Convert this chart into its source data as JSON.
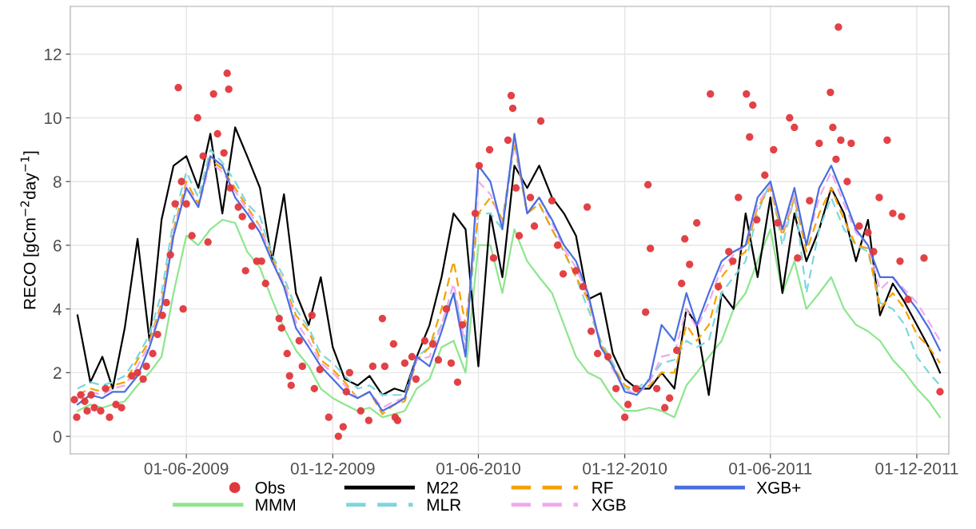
{
  "chart_data": {
    "type": "line",
    "ylabel": "RECO [gCm$^{−2}$day$^{−1}$]",
    "x": [
      "2009-01-16",
      "2009-02-01",
      "2009-02-16",
      "2009-03-01",
      "2009-03-16",
      "2009-04-01",
      "2009-04-16",
      "2009-05-01",
      "2009-05-16",
      "2009-06-01",
      "2009-06-16",
      "2009-07-01",
      "2009-07-16",
      "2009-08-01",
      "2009-08-16",
      "2009-09-01",
      "2009-09-16",
      "2009-10-01",
      "2009-10-16",
      "2009-11-01",
      "2009-11-16",
      "2009-12-01",
      "2009-12-16",
      "2010-01-01",
      "2010-01-16",
      "2010-02-01",
      "2010-02-16",
      "2010-03-01",
      "2010-03-16",
      "2010-04-01",
      "2010-04-16",
      "2010-05-01",
      "2010-05-16",
      "2010-06-01",
      "2010-06-16",
      "2010-07-01",
      "2010-07-16",
      "2010-08-01",
      "2010-08-16",
      "2010-09-01",
      "2010-09-16",
      "2010-10-01",
      "2010-10-16",
      "2010-11-01",
      "2010-11-16",
      "2010-12-01",
      "2010-12-16",
      "2011-01-01",
      "2011-01-16",
      "2011-02-01",
      "2011-02-16",
      "2011-03-01",
      "2011-03-16",
      "2011-04-01",
      "2011-04-16",
      "2011-05-01",
      "2011-05-16",
      "2011-06-01",
      "2011-06-16",
      "2011-07-01",
      "2011-07-16",
      "2011-08-01",
      "2011-08-16",
      "2011-09-01",
      "2011-09-16",
      "2011-10-01",
      "2011-10-16",
      "2011-11-01",
      "2011-11-16",
      "2011-12-01",
      "2011-12-16",
      "2011-12-30"
    ],
    "series": [
      {
        "name": "Obs",
        "type": "scatter",
        "marker": "circle",
        "color": "#e0383c",
        "x": [
          "2009-01-12",
          "2009-01-15",
          "2009-01-20",
          "2009-01-25",
          "2009-01-28",
          "2009-02-02",
          "2009-02-06",
          "2009-02-14",
          "2009-02-20",
          "2009-02-25",
          "2009-03-05",
          "2009-03-12",
          "2009-03-25",
          "2009-04-01",
          "2009-04-08",
          "2009-04-12",
          "2009-04-20",
          "2009-04-26",
          "2009-05-02",
          "2009-05-07",
          "2009-05-12",
          "2009-05-18",
          "2009-05-22",
          "2009-05-26",
          "2009-05-28",
          "2009-06-01",
          "2009-06-08",
          "2009-06-15",
          "2009-06-22",
          "2009-06-28",
          "2009-07-05",
          "2009-07-10",
          "2009-07-18",
          "2009-07-22",
          "2009-07-24",
          "2009-07-26",
          "2009-08-05",
          "2009-08-10",
          "2009-08-14",
          "2009-08-22",
          "2009-08-28",
          "2009-09-03",
          "2009-09-08",
          "2009-09-25",
          "2009-09-28",
          "2009-10-05",
          "2009-10-08",
          "2009-10-10",
          "2009-10-20",
          "2009-10-24",
          "2009-11-05",
          "2009-11-08",
          "2009-11-15",
          "2009-11-26",
          "2009-12-08",
          "2009-12-14",
          "2009-12-18",
          "2009-12-22",
          "2010-01-05",
          "2010-01-15",
          "2010-01-20",
          "2010-02-01",
          "2010-02-04",
          "2010-02-15",
          "2010-02-17",
          "2010-02-20",
          "2010-03-01",
          "2010-03-10",
          "2010-03-15",
          "2010-03-26",
          "2010-04-05",
          "2010-04-12",
          "2010-04-22",
          "2010-04-28",
          "2010-05-06",
          "2010-05-12",
          "2010-05-28",
          "2010-06-02",
          "2010-06-15",
          "2010-06-20",
          "2010-07-08",
          "2010-07-12",
          "2010-07-14",
          "2010-07-18",
          "2010-07-22",
          "2010-08-05",
          "2010-08-10",
          "2010-08-18",
          "2010-09-01",
          "2010-09-08",
          "2010-09-15",
          "2010-10-01",
          "2010-10-10",
          "2010-10-15",
          "2010-10-20",
          "2010-10-28",
          "2010-11-10",
          "2010-11-20",
          "2010-12-01",
          "2010-12-05",
          "2010-12-15",
          "2010-12-27",
          "2010-12-30",
          "2011-01-02",
          "2011-01-10",
          "2011-01-20",
          "2011-01-26",
          "2011-02-04",
          "2011-02-10",
          "2011-02-14",
          "2011-02-20",
          "2011-03-01",
          "2011-03-18",
          "2011-03-28",
          "2011-04-10",
          "2011-04-15",
          "2011-04-22",
          "2011-05-02",
          "2011-05-06",
          "2011-05-10",
          "2011-05-15",
          "2011-05-25",
          "2011-06-05",
          "2011-06-10",
          "2011-06-25",
          "2011-07-01",
          "2011-07-05",
          "2011-07-20",
          "2011-08-01",
          "2011-08-15",
          "2011-08-18",
          "2011-08-22",
          "2011-08-25",
          "2011-08-28",
          "2011-09-05",
          "2011-09-10",
          "2011-09-20",
          "2011-10-01",
          "2011-10-08",
          "2011-10-15",
          "2011-10-25",
          "2011-11-01",
          "2011-11-10",
          "2011-11-12",
          "2011-11-20",
          "2011-12-10",
          "2011-12-30"
        ],
        "values": [
          1.15,
          0.6,
          1.3,
          1.1,
          0.8,
          1.3,
          0.9,
          0.8,
          1.5,
          0.6,
          1.0,
          0.9,
          1.9,
          2.0,
          1.8,
          2.2,
          2.6,
          3.2,
          3.8,
          4.2,
          5.7,
          7.3,
          10.95,
          8.0,
          4.0,
          7.3,
          6.3,
          10.0,
          8.8,
          6.1,
          10.75,
          9.5,
          8.9,
          11.4,
          10.9,
          7.8,
          7.2,
          6.9,
          5.2,
          6.6,
          5.5,
          5.5,
          4.8,
          3.7,
          3.4,
          2.6,
          1.9,
          1.6,
          3.0,
          2.2,
          3.8,
          1.5,
          2.1,
          0.6,
          0.0,
          0.3,
          1.4,
          2.0,
          0.8,
          0.5,
          2.2,
          3.7,
          2.2,
          2.9,
          0.6,
          0.5,
          2.3,
          2.5,
          1.8,
          3.0,
          2.9,
          2.4,
          4.0,
          2.3,
          1.7,
          3.5,
          7.0,
          8.5,
          9.0,
          5.6,
          9.3,
          10.7,
          10.3,
          7.8,
          6.3,
          7.5,
          6.6,
          9.9,
          7.4,
          6.0,
          5.1,
          5.2,
          4.7,
          7.2,
          3.3,
          2.6,
          2.5,
          1.5,
          0.6,
          1.0,
          1.5,
          3.9,
          7.9,
          5.9,
          1.5,
          0.9,
          1.2,
          2.7,
          4.8,
          6.2,
          5.4,
          6.7,
          10.75,
          4.7,
          5.8,
          5.5,
          7.5,
          10.75,
          9.4,
          10.4,
          6.8,
          8.2,
          9.0,
          6.7,
          10.0,
          9.7,
          5.6,
          7.4,
          9.2,
          10.8,
          9.7,
          8.7,
          12.85,
          9.3,
          8.0,
          9.2,
          6.6,
          6.4,
          5.8,
          7.5,
          9.3,
          7.0,
          5.5,
          6.9,
          4.3,
          5.6,
          1.4
        ]
      },
      {
        "name": "MMM",
        "color": "#8ee68e",
        "line_style": "solid",
        "values": [
          0.8,
          1.0,
          0.9,
          1.0,
          1.1,
          1.6,
          2.0,
          2.5,
          4.5,
          6.3,
          6.0,
          6.5,
          6.8,
          6.7,
          5.8,
          5.3,
          4.3,
          3.4,
          2.7,
          2.2,
          1.5,
          1.2,
          1.0,
          0.8,
          0.9,
          0.6,
          0.7,
          0.8,
          1.5,
          1.8,
          2.8,
          3.0,
          2.0,
          6.0,
          6.0,
          4.5,
          6.5,
          5.5,
          5.0,
          4.5,
          3.5,
          2.5,
          2.0,
          1.8,
          1.2,
          0.8,
          0.8,
          0.9,
          0.8,
          0.6,
          1.6,
          2.0,
          2.5,
          3.0,
          4.0,
          4.5,
          5.5,
          6.5,
          4.5,
          5.5,
          4.0,
          4.5,
          5.0,
          4.0,
          3.5,
          3.3,
          3.0,
          2.4,
          2.0,
          1.5,
          1.1,
          0.6
        ]
      },
      {
        "name": "M22",
        "color": "#000000",
        "line_style": "solid",
        "values": [
          3.8,
          1.7,
          2.5,
          1.5,
          3.4,
          6.2,
          3.0,
          6.8,
          8.5,
          8.8,
          7.8,
          9.5,
          7.0,
          9.7,
          8.8,
          7.8,
          5.5,
          7.6,
          4.5,
          3.5,
          5.0,
          2.8,
          1.8,
          1.6,
          1.9,
          1.3,
          1.5,
          1.4,
          2.5,
          3.5,
          5.0,
          7.0,
          6.5,
          2.2,
          7.0,
          5.0,
          8.5,
          7.8,
          8.5,
          7.5,
          7.0,
          6.3,
          4.3,
          4.5,
          2.6,
          1.8,
          1.5,
          1.5,
          2.0,
          1.5,
          4.0,
          3.5,
          1.3,
          4.5,
          4.0,
          7.0,
          5.0,
          7.5,
          4.5,
          7.0,
          5.5,
          6.5,
          7.8,
          7.0,
          5.5,
          6.8,
          3.8,
          4.8,
          4.2,
          3.5,
          2.8,
          2.0
        ]
      },
      {
        "name": "MLR",
        "color": "#7ed6dc",
        "line_style": "dashed",
        "values": [
          1.5,
          1.7,
          1.6,
          1.7,
          1.9,
          2.5,
          3.2,
          4.5,
          6.8,
          8.3,
          7.5,
          9.0,
          8.6,
          8.0,
          7.3,
          6.9,
          5.7,
          5.0,
          4.0,
          3.4,
          2.6,
          2.3,
          1.9,
          1.5,
          1.6,
          1.3,
          1.3,
          1.3,
          2.5,
          2.8,
          3.5,
          4.5,
          3.0,
          7.0,
          7.0,
          6.5,
          9.2,
          7.0,
          7.3,
          6.5,
          5.8,
          5.0,
          4.0,
          3.0,
          2.3,
          1.5,
          1.5,
          1.8,
          2.3,
          2.4,
          3.0,
          2.8,
          3.0,
          4.5,
          5.0,
          5.5,
          7.0,
          8.0,
          6.0,
          7.5,
          4.5,
          6.5,
          7.5,
          6.5,
          6.0,
          5.8,
          4.2,
          4.0,
          3.5,
          2.5,
          2.0,
          1.6
        ]
      },
      {
        "name": "RF",
        "color": "#f5a100",
        "line_style": "dashed",
        "values": [
          1.3,
          1.5,
          1.4,
          1.6,
          1.7,
          2.4,
          3.0,
          4.2,
          6.5,
          8.0,
          7.3,
          8.7,
          8.4,
          7.8,
          7.2,
          6.6,
          5.6,
          4.8,
          3.8,
          3.3,
          2.4,
          2.1,
          1.7,
          1.2,
          1.4,
          0.7,
          1.0,
          1.1,
          2.4,
          2.8,
          4.0,
          5.5,
          3.5,
          7.0,
          7.5,
          6.8,
          9.2,
          7.0,
          7.3,
          6.5,
          5.8,
          5.0,
          4.3,
          2.9,
          2.2,
          1.6,
          1.4,
          1.6,
          2.0,
          2.0,
          3.5,
          3.0,
          3.5,
          5.0,
          5.5,
          5.8,
          7.2,
          7.8,
          6.3,
          7.5,
          5.8,
          7.0,
          7.8,
          6.8,
          6.0,
          5.9,
          4.0,
          4.5,
          4.0,
          3.2,
          2.8,
          2.3
        ]
      },
      {
        "name": "XGB",
        "color": "#eeaaee",
        "line_style": "dashed",
        "values": [
          1.2,
          1.4,
          1.3,
          1.5,
          1.6,
          2.2,
          2.9,
          4.1,
          6.4,
          7.9,
          7.2,
          8.6,
          8.3,
          7.7,
          7.1,
          6.6,
          5.5,
          4.8,
          3.6,
          3.0,
          2.3,
          2.0,
          1.6,
          1.2,
          1.4,
          0.9,
          1.1,
          1.2,
          2.4,
          2.5,
          3.5,
          4.8,
          2.8,
          8.0,
          7.6,
          6.7,
          9.3,
          7.0,
          7.5,
          6.7,
          5.9,
          5.3,
          4.4,
          2.8,
          2.1,
          1.5,
          1.3,
          1.7,
          2.5,
          2.6,
          4.0,
          3.4,
          4.2,
          5.3,
          5.7,
          6.0,
          7.3,
          7.9,
          6.4,
          7.6,
          6.0,
          7.5,
          8.3,
          7.3,
          6.4,
          6.0,
          4.6,
          5.0,
          4.6,
          4.2,
          3.6,
          3.0
        ]
      },
      {
        "name": "XGB+",
        "color": "#4a6ee0",
        "line_style": "solid",
        "values": [
          1.0,
          1.3,
          1.2,
          1.4,
          1.4,
          1.9,
          2.8,
          4.0,
          6.3,
          7.8,
          7.2,
          8.8,
          8.5,
          7.5,
          7.0,
          6.4,
          5.5,
          4.7,
          3.4,
          2.8,
          2.2,
          1.8,
          1.4,
          1.2,
          1.4,
          0.8,
          1.0,
          1.2,
          2.5,
          2.2,
          3.3,
          4.5,
          2.5,
          8.5,
          8.0,
          6.5,
          9.5,
          7.0,
          7.5,
          6.8,
          6.0,
          5.5,
          4.5,
          2.8,
          2.2,
          1.4,
          1.3,
          1.8,
          3.5,
          3.0,
          4.5,
          3.5,
          4.5,
          5.5,
          5.8,
          6.0,
          7.5,
          8.0,
          6.5,
          7.8,
          6.0,
          7.8,
          8.5,
          7.5,
          6.5,
          6.0,
          5.0,
          5.0,
          4.5,
          4.0,
          3.4,
          2.7
        ]
      }
    ],
    "xlim": [
      "2009-01-07",
      "2012-01-10"
    ],
    "xticks": [
      {
        "value": "2009-06-01",
        "label": "01-06-2009"
      },
      {
        "value": "2009-12-01",
        "label": "01-12-2009"
      },
      {
        "value": "2010-06-01",
        "label": "01-06-2010"
      },
      {
        "value": "2010-12-01",
        "label": "01-12-2010"
      },
      {
        "value": "2011-06-01",
        "label": "01-06-2011"
      },
      {
        "value": "2011-12-01",
        "label": "01-12-2011"
      }
    ],
    "ylim": [
      -0.55,
      13.5
    ],
    "yticks": [
      0,
      2,
      4,
      6,
      8,
      10,
      12
    ],
    "grid": true,
    "legend": "bottom"
  }
}
